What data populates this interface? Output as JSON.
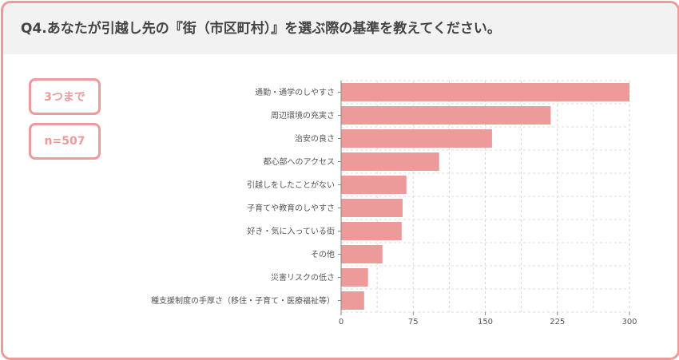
{
  "header": {
    "question": "Q4.あなたが引越し先の『街（市区町村）』を選ぶ際の基準を教えてください。"
  },
  "badges": {
    "choice_limit": "3つまで",
    "sample_size": "n=507"
  },
  "colors": {
    "accent": "#ec9a9a",
    "bar": "#ec9a9a",
    "header_bg": "#f2f2f2"
  },
  "chart_data": {
    "type": "bar",
    "orientation": "horizontal",
    "categories": [
      "通勤・通学のしやすさ",
      "周辺環境の充実さ",
      "治安の良さ",
      "都心部へのアクセス",
      "引越しをしたことがない",
      "子育てや教育のしやすさ",
      "好き・気に入っている街",
      "その他",
      "災害リスクの低さ",
      "種支援制度の手厚さ（移住・子育て・医療福祉等）"
    ],
    "values": [
      300,
      218,
      157,
      102,
      68,
      64,
      63,
      43,
      28,
      24
    ],
    "xlim": [
      0,
      300
    ],
    "xticks": [
      0,
      75,
      150,
      225,
      300
    ],
    "grid": true,
    "legend": "none"
  }
}
